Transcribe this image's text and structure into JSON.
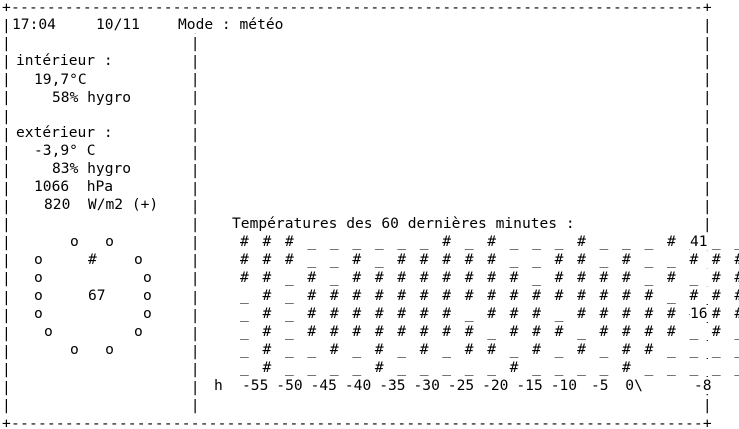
{
  "header": {
    "time": "17:04",
    "date": "10/11",
    "mode": "Mode : météo"
  },
  "interior": {
    "label": "intérieur :",
    "temperature": "19,7°C",
    "humidity": "58% hygro"
  },
  "exterior": {
    "label": "extérieur :",
    "temperature": "-3,9° C",
    "humidity": "83% hygro",
    "pressure": "1066  hPa",
    "radiation": "820  W/m2 (+)"
  },
  "dial": {
    "value": "67",
    "marker": "#"
  },
  "chart_data": {
    "type": "table",
    "title": "Températures des 60 dernières minutes :",
    "rows": [
      "# # # _ _ _ _ _ _ # _ # _ _ _ # _ _ _ # _ _ _ _",
      "# # # _ _ # _ # # # # # _ _ # # _ # _ _ # # # #",
      "# # _ # _ # # # # # # # # _ # # # # _ # _ # # #",
      "_ # _ # # # # # # # # # # # # # # # # _ # # # #",
      "_ # _ # # # # # # # _ # # # _ # # # # # # # # #",
      "_ # _ # # # # # # # # _ # # # _ # # # # _ # _ _",
      "_ # _ _ # _ # _ # _ # # _ # _ # _ # # _ _ _ _ _",
      "_ # _ _ _ _ # _ _ _ _ _ # _ _ _ _ # _ _ _ _ _ _"
    ],
    "y_labels": [
      "41",
      "16",
      "-8"
    ],
    "x_prefix": "h",
    "x_labels": [
      "-55",
      "-50",
      "-45",
      "-40",
      "-35",
      "-30",
      "-25",
      "-20",
      "-15",
      "-10",
      "-5",
      "0\\"
    ]
  }
}
